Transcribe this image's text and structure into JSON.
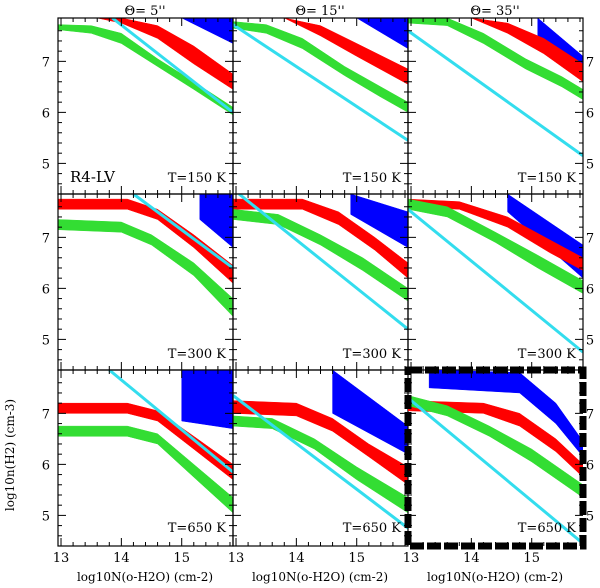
{
  "figure": {
    "ylabel": "log10n(H2) (cm-3)",
    "xlabel": "log10N(o-H2O) (cm-2)",
    "column_titles": [
      "Θ= 5''",
      "Θ= 15''",
      "Θ= 35''"
    ],
    "source_label": "R4-LV",
    "temperature_labels": [
      "T=150 K",
      "T=300 K",
      "T=650 K"
    ],
    "highlighted_panel": "row 3, column 3",
    "colors": {
      "blue": "#0000ff",
      "red": "#ff0000",
      "green": "#33dd33",
      "cyan": "#33ddee"
    }
  },
  "chart_data": {
    "type": "band-panel-grid",
    "rows": 3,
    "cols": 3,
    "x_range": [
      12.95,
      15.85
    ],
    "y_range": [
      4.4,
      7.85
    ],
    "x_ticks": [
      13,
      14,
      15
    ],
    "y_ticks": [
      5,
      6,
      7
    ],
    "panels": [
      {
        "row": 1,
        "col": 1,
        "temperature": "T=150 K",
        "theta": "5''",
        "blue": {
          "x": [
            15.0,
            15.85
          ],
          "top": [
            7.85,
            7.85
          ],
          "bottom": [
            7.85,
            7.35
          ]
        },
        "red": {
          "x": [
            13.6,
            14.0,
            14.6,
            15.2,
            15.85
          ],
          "top": [
            7.85,
            7.85,
            7.7,
            7.3,
            6.75
          ],
          "bottom": [
            7.85,
            7.75,
            7.45,
            6.95,
            6.45
          ]
        },
        "green": {
          "x": [
            12.95,
            13.5,
            14.0,
            14.6,
            15.2,
            15.85
          ],
          "top": [
            7.72,
            7.7,
            7.55,
            7.05,
            6.6,
            6.1
          ],
          "bottom": [
            7.62,
            7.55,
            7.35,
            6.9,
            6.45,
            5.95
          ]
        },
        "cyan": {
          "x": [
            13.85,
            15.85
          ],
          "y": [
            7.85,
            6.0
          ]
        }
      },
      {
        "row": 1,
        "col": 2,
        "temperature": "T=150 K",
        "theta": "15''",
        "blue": {
          "x": [
            15.0,
            15.85
          ],
          "top": [
            7.85,
            7.85
          ],
          "bottom": [
            7.85,
            7.25
          ]
        },
        "red": {
          "x": [
            13.8,
            14.4,
            15.0,
            15.85
          ],
          "top": [
            7.85,
            7.7,
            7.35,
            6.85
          ],
          "bottom": [
            7.85,
            7.5,
            7.1,
            6.55
          ]
        },
        "green": {
          "x": [
            12.95,
            13.5,
            14.1,
            14.8,
            15.4,
            15.85
          ],
          "top": [
            7.78,
            7.72,
            7.45,
            6.9,
            6.5,
            6.2
          ],
          "bottom": [
            7.65,
            7.55,
            7.25,
            6.72,
            6.3,
            6.0
          ]
        },
        "cyan": {
          "x": [
            12.95,
            15.85
          ],
          "y": [
            7.72,
            5.45
          ]
        }
      },
      {
        "row": 1,
        "col": 3,
        "temperature": "T=150 K",
        "theta": "35''",
        "blue": {
          "x": [
            15.1,
            15.85
          ],
          "top": [
            7.85,
            7.1
          ],
          "bottom": [
            7.5,
            6.6
          ]
        },
        "red": {
          "x": [
            14.0,
            14.6,
            15.2,
            15.85
          ],
          "top": [
            7.85,
            7.75,
            7.45,
            6.95
          ],
          "bottom": [
            7.85,
            7.55,
            7.15,
            6.6
          ]
        },
        "green": {
          "x": [
            12.95,
            13.6,
            14.2,
            14.9,
            15.5,
            15.85
          ],
          "top": [
            7.85,
            7.85,
            7.55,
            7.05,
            6.7,
            6.45
          ],
          "bottom": [
            7.75,
            7.7,
            7.35,
            6.85,
            6.5,
            6.25
          ]
        },
        "cyan": {
          "x": [
            12.95,
            15.85
          ],
          "y": [
            7.6,
            5.15
          ]
        }
      },
      {
        "row": 2,
        "col": 1,
        "temperature": "T=300 K",
        "theta": "5''",
        "blue": {
          "x": [
            15.3,
            15.85
          ],
          "top": [
            7.85,
            7.85
          ],
          "bottom": [
            7.35,
            6.8
          ]
        },
        "red": {
          "x": [
            12.95,
            14.1,
            14.6,
            15.2,
            15.85
          ],
          "top": [
            7.75,
            7.75,
            7.55,
            7.05,
            6.45
          ],
          "bottom": [
            7.55,
            7.55,
            7.35,
            6.8,
            6.1
          ]
        },
        "green": {
          "x": [
            12.95,
            14.0,
            14.5,
            15.2,
            15.85
          ],
          "top": [
            7.35,
            7.3,
            7.05,
            6.5,
            5.8
          ],
          "bottom": [
            7.15,
            7.1,
            6.85,
            6.25,
            5.45
          ]
        },
        "cyan": {
          "x": [
            14.2,
            15.85
          ],
          "y": [
            7.85,
            6.4
          ]
        }
      },
      {
        "row": 2,
        "col": 2,
        "temperature": "T=300 K",
        "theta": "15''",
        "blue": {
          "x": [
            14.9,
            15.85
          ],
          "top": [
            7.85,
            7.5
          ],
          "bottom": [
            7.45,
            6.8
          ]
        },
        "red": {
          "x": [
            12.95,
            14.1,
            14.7,
            15.3,
            15.85
          ],
          "top": [
            7.75,
            7.75,
            7.5,
            7.0,
            6.5
          ],
          "bottom": [
            7.55,
            7.55,
            7.25,
            6.75,
            6.2
          ]
        },
        "green": {
          "x": [
            12.95,
            13.7,
            14.4,
            15.1,
            15.85
          ],
          "top": [
            7.55,
            7.45,
            7.05,
            6.6,
            6.0
          ],
          "bottom": [
            7.35,
            7.25,
            6.85,
            6.35,
            5.75
          ]
        },
        "cyan": {
          "x": [
            13.05,
            15.85
          ],
          "y": [
            7.85,
            5.2
          ]
        }
      },
      {
        "row": 2,
        "col": 3,
        "temperature": "T=300 K",
        "theta": "35''",
        "blue": {
          "x": [
            14.6,
            15.85
          ],
          "top": [
            7.85,
            6.85
          ],
          "bottom": [
            7.5,
            6.2
          ]
        },
        "red": {
          "x": [
            12.95,
            13.8,
            14.6,
            15.3,
            15.85
          ],
          "top": [
            7.75,
            7.7,
            7.4,
            6.95,
            6.6
          ],
          "bottom": [
            7.6,
            7.55,
            7.2,
            6.7,
            6.35
          ]
        },
        "green": {
          "x": [
            12.95,
            13.6,
            14.4,
            15.1,
            15.85
          ],
          "top": [
            7.75,
            7.6,
            7.1,
            6.65,
            6.15
          ],
          "bottom": [
            7.55,
            7.4,
            6.9,
            6.4,
            5.9
          ]
        },
        "cyan": {
          "x": [
            12.95,
            15.85
          ],
          "y": [
            7.55,
            4.75
          ]
        }
      },
      {
        "row": 3,
        "col": 1,
        "temperature": "T=650 K",
        "theta": "5''",
        "blue": {
          "x": [
            15.0,
            15.85
          ],
          "top": [
            7.85,
            7.85
          ],
          "bottom": [
            6.85,
            6.7
          ]
        },
        "red": {
          "x": [
            12.95,
            14.1,
            14.6,
            15.2,
            15.85
          ],
          "top": [
            7.2,
            7.2,
            7.05,
            6.55,
            6.0
          ],
          "bottom": [
            7.0,
            7.0,
            6.85,
            6.3,
            5.7
          ]
        },
        "green": {
          "x": [
            12.95,
            14.1,
            14.6,
            15.2,
            15.85
          ],
          "top": [
            6.75,
            6.75,
            6.6,
            6.0,
            5.35
          ],
          "bottom": [
            6.55,
            6.55,
            6.4,
            5.75,
            5.05
          ]
        },
        "cyan": {
          "x": [
            13.8,
            15.85
          ],
          "y": [
            7.85,
            5.85
          ]
        }
      },
      {
        "row": 3,
        "col": 2,
        "temperature": "T=650 K",
        "theta": "15''",
        "blue": {
          "x": [
            14.6,
            15.85
          ],
          "top": [
            7.85,
            6.75
          ],
          "bottom": [
            7.0,
            6.2
          ]
        },
        "red": {
          "x": [
            12.95,
            14.0,
            14.6,
            15.2,
            15.85
          ],
          "top": [
            7.25,
            7.2,
            6.9,
            6.4,
            5.95
          ],
          "bottom": [
            7.0,
            6.95,
            6.65,
            6.15,
            5.6
          ]
        },
        "green": {
          "x": [
            12.95,
            13.6,
            14.3,
            15.0,
            15.85
          ],
          "top": [
            6.95,
            6.9,
            6.5,
            5.95,
            5.35
          ],
          "bottom": [
            6.75,
            6.7,
            6.3,
            5.7,
            5.05
          ]
        },
        "cyan": {
          "x": [
            12.95,
            15.85
          ],
          "y": [
            7.35,
            4.75
          ]
        }
      },
      {
        "row": 3,
        "col": 3,
        "temperature": "T=650 K",
        "theta": "35''",
        "blue": {
          "x": [
            13.3,
            14.8,
            15.4,
            15.85
          ],
          "top": [
            7.85,
            7.8,
            7.2,
            6.45
          ],
          "bottom": [
            7.5,
            7.4,
            6.8,
            6.15
          ]
        },
        "red": {
          "x": [
            12.95,
            14.2,
            14.8,
            15.4,
            15.85
          ],
          "top": [
            7.25,
            7.2,
            7.0,
            6.5,
            6.0
          ],
          "bottom": [
            7.05,
            7.0,
            6.75,
            6.25,
            5.75
          ]
        },
        "green": {
          "x": [
            12.95,
            13.6,
            14.3,
            15.0,
            15.85
          ],
          "top": [
            7.35,
            7.15,
            6.75,
            6.3,
            5.6
          ],
          "bottom": [
            7.15,
            6.95,
            6.55,
            6.05,
            5.35
          ]
        },
        "cyan": {
          "x": [
            12.95,
            15.85
          ],
          "y": [
            7.3,
            4.45
          ]
        }
      }
    ]
  }
}
